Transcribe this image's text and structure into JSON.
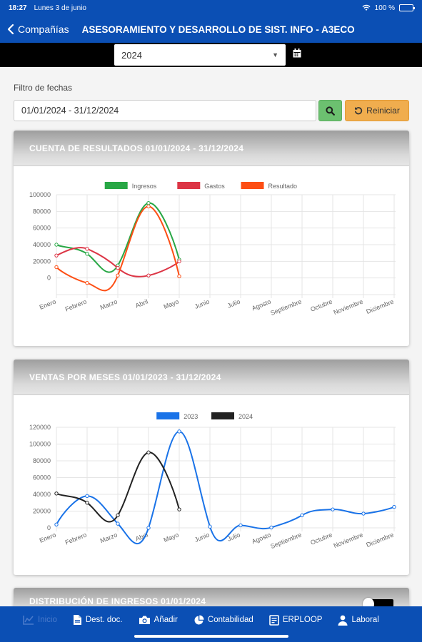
{
  "status": {
    "time": "18:27",
    "date": "Lunes 3 de junio",
    "battery": "100 %"
  },
  "nav": {
    "back_label": "Compañías",
    "title": "ASESORAMIENTO Y DESARROLLO DE SIST. INFO - A3ECO"
  },
  "year_select": {
    "value": "2024"
  },
  "filter": {
    "label": "Filtro de fechas",
    "range": "01/01/2024 - 31/12/2024",
    "reset_label": "Reiniciar"
  },
  "card_results": {
    "title": "CUENTA DE RESULTADOS 01/01/2024 - 31/12/2024"
  },
  "card_sales": {
    "title": "VENTAS POR MESES 01/01/2023 - 31/12/2024"
  },
  "card_income": {
    "title": "DISTRIBUCIÓN DE INGRESOS 01/01/2024"
  },
  "tabs": [
    {
      "label": "Inicio",
      "icon": "chart-icon"
    },
    {
      "label": "Dest. doc.",
      "icon": "document-icon"
    },
    {
      "label": "Añadir",
      "icon": "camera-icon"
    },
    {
      "label": "Contabilidad",
      "icon": "pie-icon"
    },
    {
      "label": "ERPLOOP",
      "icon": "erp-icon"
    },
    {
      "label": "Laboral",
      "icon": "person-icon"
    }
  ],
  "colors": {
    "brand": "#0b4fb4",
    "ingresos": "#28a745",
    "gastos": "#dc3545",
    "resultado": "#fd4e14",
    "s2023": "#1a73e8",
    "s2024": "#222222"
  },
  "chart_data": [
    {
      "type": "line",
      "categories": [
        "Enero",
        "Febrero",
        "Marzo",
        "Abril",
        "Mayo",
        "Junio",
        "Julio",
        "Agosto",
        "Septiembre",
        "Octubre",
        "Noviembre",
        "Diciembre"
      ],
      "series": [
        {
          "name": "Ingresos",
          "values": [
            40000,
            29000,
            15000,
            90000,
            22000,
            null,
            null,
            null,
            null,
            null,
            null,
            null
          ]
        },
        {
          "name": "Gastos",
          "values": [
            27000,
            35000,
            12000,
            3000,
            20000,
            null,
            null,
            null,
            null,
            null,
            null,
            null
          ]
        },
        {
          "name": "Resultado",
          "values": [
            13000,
            -6000,
            3000,
            86000,
            2000,
            null,
            null,
            null,
            null,
            null,
            null,
            null
          ]
        }
      ],
      "yticks": [
        "100000",
        "80000",
        "60000",
        "40000",
        "20000",
        "0"
      ],
      "ylim": [
        -20000,
        100000
      ],
      "legend": "top"
    },
    {
      "type": "line",
      "categories": [
        "Enero",
        "Febrero",
        "Marzo",
        "Abril",
        "Mayo",
        "Junio",
        "Julio",
        "Agosto",
        "Septiembre",
        "Octubre",
        "Noviembre",
        "Diciembre"
      ],
      "series": [
        {
          "name": "2023",
          "values": [
            4000,
            38000,
            5000,
            0,
            115000,
            1500,
            3000,
            500,
            15000,
            22000,
            17000,
            25000
          ]
        },
        {
          "name": "2024",
          "values": [
            41000,
            30000,
            15000,
            90000,
            22000,
            null,
            null,
            null,
            null,
            null,
            null,
            null
          ]
        }
      ],
      "yticks": [
        "120000",
        "100000",
        "80000",
        "60000",
        "40000",
        "20000",
        "0"
      ],
      "ylim": [
        0,
        120000
      ],
      "legend": "top"
    }
  ]
}
